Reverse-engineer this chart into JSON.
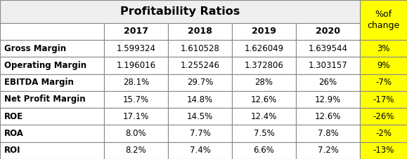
{
  "title": "Profitability Ratios",
  "col_headers": [
    "",
    "2017",
    "2018",
    "2019",
    "2020",
    "%of\nchange"
  ],
  "rows": [
    [
      "Gross Margin",
      "1.599324",
      "1.610528",
      "1.626049",
      "1.639544",
      "3%"
    ],
    [
      "Operating Margin",
      "1.196016",
      "1.255246",
      "1.372806",
      "1.303157",
      "9%"
    ],
    [
      "EBITDA Margin",
      "28.1%",
      "29.7%",
      "28%",
      "26%",
      "-7%"
    ],
    [
      "Net Profit Margin",
      "15.7%",
      "14.8%",
      "12.6%",
      "12.9%",
      "-17%"
    ],
    [
      "ROE",
      "17.1%",
      "14.5%",
      "12.4%",
      "12.6%",
      "-26%"
    ],
    [
      "ROA",
      "8.0%",
      "7.7%",
      "7.5%",
      "7.8%",
      "-2%"
    ],
    [
      "ROI",
      "8.2%",
      "7.4%",
      "6.6%",
      "7.2%",
      "-13%"
    ]
  ],
  "title_bg": "#efefef",
  "header_bg": "#ffffff",
  "row_bg": "#ffffff",
  "yellow_bg": "#ffff00",
  "border_color": "#888888",
  "title_fontsize": 11.5,
  "header_fontsize": 9,
  "cell_fontsize": 8.5,
  "fig_width": 5.79,
  "fig_height": 2.27,
  "dpi": 100
}
